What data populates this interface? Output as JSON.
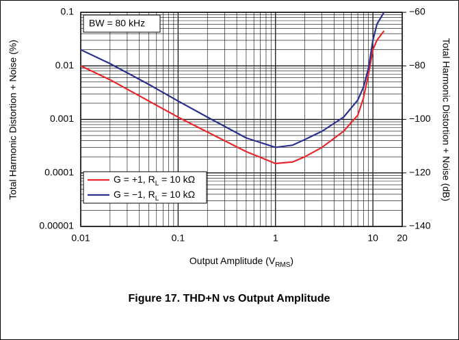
{
  "chart_data": {
    "type": "line",
    "caption": "Figure 17. THD+N vs Output Amplitude",
    "annotation": "BW = 80 kHz",
    "x_label": [
      "Output Amplitude (V",
      "RMS",
      ")"
    ],
    "y_label": "Total Harmonic Distortion + Noise (%)",
    "y2_label": "Total Harmonic Distortion + Noise (dB)",
    "xscale": "log",
    "yscale": "log",
    "grid": true,
    "minor_grid": true,
    "legend": "lower left",
    "xlim": [
      0.01,
      20
    ],
    "xticks": [
      0.01,
      0.1,
      1,
      10,
      20
    ],
    "ylim": [
      1e-05,
      0.1
    ],
    "yticks": [
      0.1,
      0.01,
      0.001,
      0.0001,
      1e-05
    ],
    "y2lim": [
      -140,
      -60
    ],
    "y2ticks": [
      {
        "value": -60,
        "label": "−60"
      },
      {
        "value": -80,
        "label": "−80"
      },
      {
        "value": -100,
        "label": "−100"
      },
      {
        "value": -120,
        "label": "−120"
      },
      {
        "value": -140,
        "label": "−140"
      }
    ],
    "x": [
      0.01,
      0.02,
      0.05,
      0.1,
      0.2,
      0.5,
      1,
      1.5,
      2,
      3,
      5,
      7,
      8,
      9,
      10,
      11,
      13
    ],
    "series": [
      {
        "name": [
          "G = +1, R",
          "L",
          " = 10 kΩ"
        ],
        "color": "#e8262b",
        "values": [
          0.01,
          0.0055,
          0.0022,
          0.0011,
          0.00058,
          0.00025,
          0.00015,
          0.00016,
          0.0002,
          0.0003,
          0.0006,
          0.0012,
          0.0025,
          0.007,
          0.02,
          0.03,
          0.045
        ]
      },
      {
        "name": [
          "G = −1, R",
          "L",
          " = 10 kΩ"
        ],
        "color": "#2b2f8f",
        "values": [
          0.02,
          0.011,
          0.0045,
          0.0022,
          0.0011,
          0.00045,
          0.0003,
          0.00033,
          0.00042,
          0.0006,
          0.0011,
          0.0023,
          0.004,
          0.009,
          0.03,
          0.06,
          0.1
        ]
      }
    ]
  }
}
